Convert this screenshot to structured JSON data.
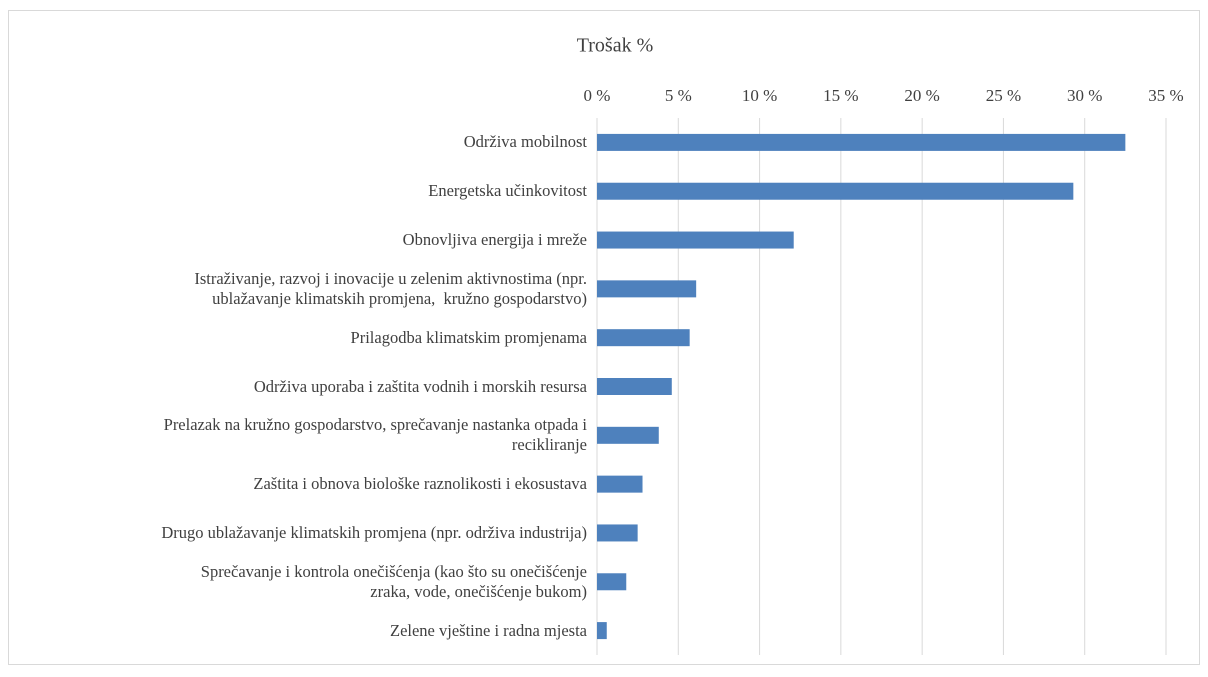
{
  "chart_data": {
    "type": "bar",
    "orientation": "horizontal",
    "title": "Trošak %",
    "categories": [
      "Održiva mobilnost",
      "Energetska učinkovitost",
      "Obnovljiva energija i mreže",
      "Istraživanje, razvoj i inovacije u zelenim aktivnostima (npr.\nublažavanje klimatskih promjena,  kružno gospodarstvo)",
      "Prilagodba klimatskim promjenama",
      "Održiva uporaba i zaštita vodnih i morskih resursa",
      "Prelazak na kružno gospodarstvo, sprečavanje nastanka otpada i\nrecikliranje",
      "Zaštita i obnova biološke raznolikosti i ekosustava",
      "Drugo ublažavanje klimatskih promjena (npr. održiva industrija)",
      "Sprečavanje i kontrola onečišćenja (kao što su onečišćenje\nzraka, vode, onečišćenje bukom)",
      "Zelene vještine i radna mjesta"
    ],
    "values": [
      32.5,
      29.3,
      12.1,
      6.1,
      5.7,
      4.6,
      3.8,
      2.8,
      2.5,
      1.8,
      0.6
    ],
    "color": "#4e81bd",
    "xlim": [
      0,
      35
    ],
    "xticks": [
      {
        "value": 0,
        "label": "0 %"
      },
      {
        "value": 5,
        "label": "5 %"
      },
      {
        "value": 10,
        "label": "10 %"
      },
      {
        "value": 15,
        "label": "15 %"
      },
      {
        "value": 20,
        "label": "20 %"
      },
      {
        "value": 25,
        "label": "25 %"
      },
      {
        "value": 30,
        "label": "30 %"
      },
      {
        "value": 35,
        "label": "35 %"
      }
    ],
    "grid": true
  }
}
